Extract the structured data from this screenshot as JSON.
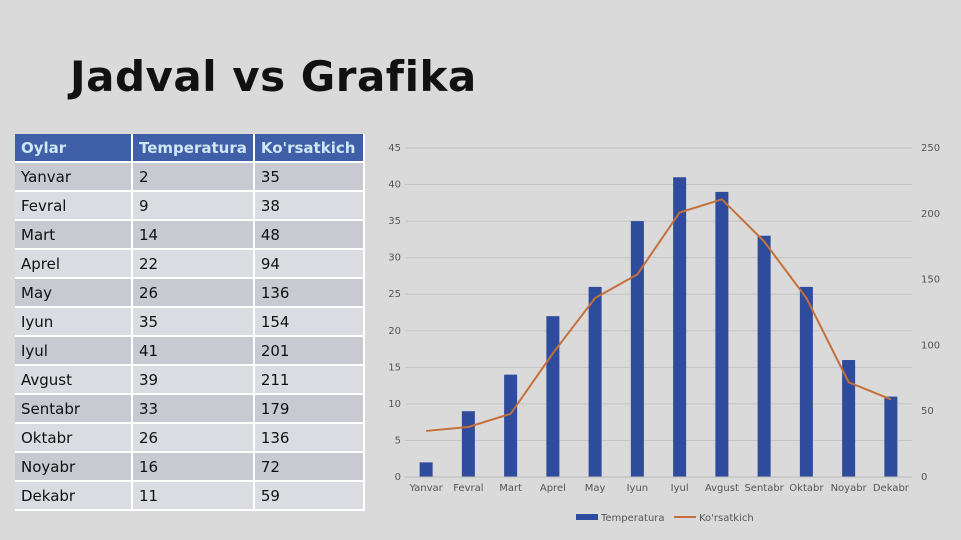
{
  "title": "Jadval vs Grafika",
  "table": {
    "header": [
      "Oylar",
      "Temperatura",
      "Ko'rsatkich"
    ],
    "rows": [
      [
        "Yanvar",
        2,
        35
      ],
      [
        "Fevral",
        9,
        38
      ],
      [
        "Mart",
        14,
        48
      ],
      [
        "Aprel",
        22,
        94
      ],
      [
        "May",
        26,
        136
      ],
      [
        "Iyun",
        35,
        154
      ],
      [
        "Iyul",
        41,
        201
      ],
      [
        "Avgust",
        39,
        211
      ],
      [
        "Sentabr",
        33,
        179
      ],
      [
        "Oktabr",
        26,
        136
      ],
      [
        "Noyabr",
        16,
        72
      ],
      [
        "Dekabr",
        11,
        59
      ]
    ]
  },
  "chart_data": {
    "type": "bar-line",
    "categories": [
      "Yanvar",
      "Fevral",
      "Mart",
      "Aprel",
      "May",
      "Iyun",
      "Iyul",
      "Avgust",
      "Sentabr",
      "Oktabr",
      "Noyabr",
      "Dekabr"
    ],
    "series": [
      {
        "name": "Temperatura",
        "color": "#2e4b9c",
        "type": "bar",
        "values": [
          2,
          9,
          14,
          22,
          26,
          35,
          41,
          39,
          33,
          26,
          16,
          11
        ]
      },
      {
        "name": "Ko'rsatkich",
        "color": "#c5703a",
        "type": "line",
        "axis": "y2",
        "values": [
          35,
          38,
          48,
          94,
          136,
          154,
          201,
          211,
          179,
          136,
          72,
          59
        ]
      }
    ],
    "ylim": [
      0,
      45
    ],
    "yticks": [
      0,
      5,
      10,
      15,
      20,
      25,
      30,
      35,
      40,
      45
    ],
    "y2lim": [
      0,
      250
    ],
    "y2ticks": [
      0,
      50,
      100,
      150,
      200,
      250
    ],
    "grid": true,
    "legend": "bottom"
  }
}
